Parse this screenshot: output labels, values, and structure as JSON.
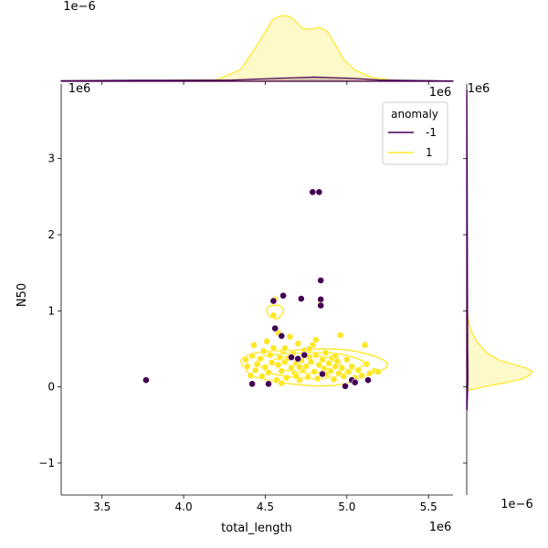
{
  "chart_data": {
    "type": "scatter",
    "kind": "joint plot with KDE contours and marginal density plots",
    "xlabel": "total_length",
    "ylabel": "N50",
    "x_multiplier": "1e6",
    "y_multiplier": "1e6",
    "top_marginal_multiplier": "1e−6",
    "right_marginal_multiplier": "1e−6",
    "xlim": [
      3.25,
      5.65
    ],
    "ylim": [
      -1.42,
      3.98
    ],
    "x_ticks": [
      {
        "value": 3.5,
        "label": "3.5"
      },
      {
        "value": 4.0,
        "label": "4.0"
      },
      {
        "value": 4.5,
        "label": "4.5"
      },
      {
        "value": 5.0,
        "label": "5.0"
      },
      {
        "value": 5.5,
        "label": "5.5"
      }
    ],
    "y_ticks": [
      {
        "value": -1,
        "label": "−1"
      },
      {
        "value": 0,
        "label": "0"
      },
      {
        "value": 1,
        "label": "1"
      },
      {
        "value": 2,
        "label": "2"
      },
      {
        "value": 3,
        "label": "3"
      }
    ],
    "grid": false,
    "legend": {
      "title": "anomaly",
      "placement": "top-right",
      "entries": [
        {
          "label": "-1",
          "color": "#440154"
        },
        {
          "label": "1",
          "color": "#fde725"
        }
      ]
    },
    "series": [
      {
        "name": "-1",
        "color": "#440154",
        "points": [
          [
            3.77,
            0.09
          ],
          [
            4.42,
            0.04
          ],
          [
            4.52,
            0.04
          ],
          [
            4.55,
            1.13
          ],
          [
            4.56,
            0.77
          ],
          [
            4.6,
            0.67
          ],
          [
            4.61,
            1.2
          ],
          [
            4.66,
            0.39
          ],
          [
            4.7,
            0.37
          ],
          [
            4.72,
            1.16
          ],
          [
            4.74,
            0.42
          ],
          [
            4.79,
            2.56
          ],
          [
            4.83,
            2.56
          ],
          [
            4.84,
            1.4
          ],
          [
            4.84,
            1.15
          ],
          [
            4.84,
            1.07
          ],
          [
            4.85,
            0.17
          ],
          [
            4.99,
            0.01
          ],
          [
            5.03,
            0.09
          ],
          [
            5.05,
            0.06
          ],
          [
            5.13,
            0.09
          ]
        ]
      },
      {
        "name": "1",
        "color": "#fde725",
        "points": [
          [
            4.38,
            0.36
          ],
          [
            4.39,
            0.27
          ],
          [
            4.41,
            0.15
          ],
          [
            4.42,
            0.41
          ],
          [
            4.43,
            0.55
          ],
          [
            4.44,
            0.22
          ],
          [
            4.45,
            0.3
          ],
          [
            4.47,
            0.37
          ],
          [
            4.48,
            0.14
          ],
          [
            4.49,
            0.47
          ],
          [
            4.5,
            0.26
          ],
          [
            4.51,
            0.6
          ],
          [
            4.52,
            0.19
          ],
          [
            4.53,
            0.42
          ],
          [
            4.54,
            0.32
          ],
          [
            4.55,
            0.94
          ],
          [
            4.55,
            0.51
          ],
          [
            4.56,
            1.15
          ],
          [
            4.57,
            0.09
          ],
          [
            4.58,
            0.71
          ],
          [
            4.58,
            0.29
          ],
          [
            4.59,
            0.39
          ],
          [
            4.6,
            0.21
          ],
          [
            4.61,
            0.47
          ],
          [
            4.62,
            0.33
          ],
          [
            4.63,
            0.12
          ],
          [
            4.64,
            0.38
          ],
          [
            4.65,
            0.66
          ],
          [
            4.66,
            0.25
          ],
          [
            4.67,
            0.44
          ],
          [
            4.68,
            0.18
          ],
          [
            4.69,
            0.31
          ],
          [
            4.7,
            0.57
          ],
          [
            4.71,
            0.09
          ],
          [
            4.72,
            0.35
          ],
          [
            4.73,
            0.22
          ],
          [
            4.74,
            0.48
          ],
          [
            4.75,
            0.27
          ],
          [
            4.76,
            0.13
          ],
          [
            4.77,
            0.39
          ],
          [
            4.78,
            0.33
          ],
          [
            4.79,
            0.55
          ],
          [
            4.8,
            0.2
          ],
          [
            4.81,
            0.42
          ],
          [
            4.82,
            0.11
          ],
          [
            4.83,
            0.29
          ],
          [
            4.84,
            1.1
          ],
          [
            4.85,
            0.36
          ],
          [
            4.86,
            0.24
          ],
          [
            4.87,
            0.45
          ],
          [
            4.88,
            0.15
          ],
          [
            4.89,
            0.31
          ],
          [
            4.9,
            0.21
          ],
          [
            4.91,
            0.38
          ],
          [
            4.92,
            0.1
          ],
          [
            4.93,
            0.27
          ],
          [
            4.94,
            0.34
          ],
          [
            4.95,
            0.18
          ],
          [
            4.96,
            0.68
          ],
          [
            4.97,
            0.25
          ],
          [
            4.98,
            0.14
          ],
          [
            5.0,
            0.36
          ],
          [
            5.01,
            0.2
          ],
          [
            5.03,
            0.27
          ],
          [
            5.05,
            0.12
          ],
          [
            5.07,
            0.22
          ],
          [
            5.09,
            0.15
          ],
          [
            5.11,
            0.55
          ],
          [
            5.12,
            0.3
          ],
          [
            5.14,
            0.18
          ],
          [
            5.17,
            0.21
          ],
          [
            5.19,
            0.2
          ],
          [
            4.62,
            0.51
          ],
          [
            4.69,
            0.14
          ],
          [
            4.77,
            0.5
          ],
          [
            4.81,
            0.62
          ],
          [
            4.87,
            0.17
          ],
          [
            4.93,
            0.41
          ],
          [
            4.6,
            0.05
          ],
          [
            4.71,
            0.26
          ]
        ]
      }
    ],
    "marginal_x": {
      "type": "kde",
      "series": [
        {
          "name": "1",
          "color": "#fde725",
          "x": [
            3.25,
            4.2,
            4.35,
            4.45,
            4.55,
            4.6,
            4.64,
            4.68,
            4.73,
            4.78,
            4.83,
            4.88,
            4.93,
            4.98,
            5.05,
            5.15,
            5.3,
            5.65
          ],
          "density": [
            0,
            0.02,
            0.18,
            0.55,
            0.95,
            1.0,
            0.99,
            0.93,
            0.8,
            0.79,
            0.82,
            0.76,
            0.55,
            0.33,
            0.17,
            0.06,
            0.01,
            0
          ]
        },
        {
          "name": "-1",
          "color": "#440154",
          "x": [
            3.25,
            3.7,
            3.85,
            4.3,
            4.55,
            4.8,
            5.05,
            5.2,
            5.65
          ],
          "density": [
            0.01,
            0.015,
            0.015,
            0.02,
            0.045,
            0.065,
            0.045,
            0.02,
            0.005
          ]
        }
      ]
    },
    "marginal_y": {
      "type": "kde",
      "series": [
        {
          "name": "1",
          "color": "#fde725",
          "y": [
            -0.05,
            0.0,
            0.05,
            0.1,
            0.15,
            0.2,
            0.25,
            0.3,
            0.35,
            0.45,
            0.6,
            0.75,
            0.9,
            1.1
          ],
          "density": [
            0,
            0.25,
            0.55,
            0.83,
            0.95,
            1.0,
            0.9,
            0.7,
            0.5,
            0.3,
            0.15,
            0.06,
            0.02,
            0
          ]
        },
        {
          "name": "-1",
          "color": "#440154",
          "y": [
            -0.3,
            0.1,
            0.5,
            1.2,
            2.6,
            3.9
          ],
          "density": [
            0.005,
            0.02,
            0.015,
            0.012,
            0.008,
            0.003
          ]
        }
      ]
    }
  }
}
